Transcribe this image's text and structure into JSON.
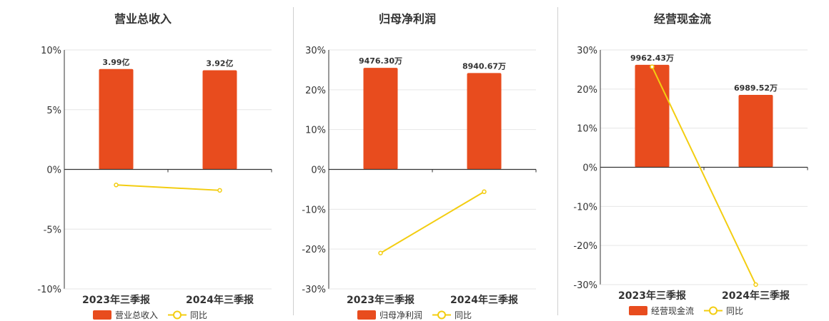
{
  "colors": {
    "bar": "#e84c1e",
    "line": "#f3cd11",
    "grid": "#e6e6e6",
    "axis": "#333333"
  },
  "chart_data": [
    {
      "type": "bar",
      "title": "营业总收入",
      "categories": [
        "2023年三季报",
        "2024年三季报"
      ],
      "series": [
        {
          "name": "营业总收入",
          "kind": "bar",
          "values": [
            8.4,
            8.3
          ],
          "labels": [
            "3.99亿",
            "3.92亿"
          ]
        },
        {
          "name": "同比",
          "kind": "line",
          "values": [
            -1.3,
            -1.75
          ]
        }
      ],
      "ylim": [
        -10,
        10
      ],
      "yticks": [
        10,
        5,
        0,
        -5,
        -10
      ],
      "ytick_labels": [
        "10%",
        "5%",
        "0%",
        "-5%",
        "-10%"
      ],
      "grid": true,
      "legend_position": "bottom"
    },
    {
      "type": "bar",
      "title": "归母净利润",
      "categories": [
        "2023年三季报",
        "2024年三季报"
      ],
      "series": [
        {
          "name": "归母净利润",
          "kind": "bar",
          "values": [
            25.5,
            24.2
          ],
          "labels": [
            "9476.30万",
            "8940.67万"
          ]
        },
        {
          "name": "同比",
          "kind": "line",
          "values": [
            -21,
            -5.6
          ]
        }
      ],
      "ylim": [
        -30,
        30
      ],
      "yticks": [
        30,
        20,
        10,
        0,
        -10,
        -20,
        -30
      ],
      "ytick_labels": [
        "30%",
        "20%",
        "10%",
        "0%",
        "-10%",
        "-20%",
        "-30%"
      ],
      "grid": true,
      "legend_position": "bottom"
    },
    {
      "type": "bar",
      "title": "经营现金流",
      "categories": [
        "2023年三季报",
        "2024年三季报"
      ],
      "series": [
        {
          "name": "经营现金流",
          "kind": "bar",
          "values": [
            26.2,
            18.5
          ],
          "labels": [
            "9962.43万",
            "6989.52万"
          ]
        },
        {
          "name": "同比",
          "kind": "line",
          "values": [
            25.7,
            -30
          ]
        }
      ],
      "ylim": [
        -30,
        30
      ],
      "yticks": [
        30,
        20,
        10,
        0,
        -10,
        -20,
        -30
      ],
      "ytick_labels": [
        "30%",
        "20%",
        "10%",
        "0%",
        "-10%",
        "-20%",
        "-30%"
      ],
      "grid": true,
      "legend_position": "bottom"
    }
  ]
}
